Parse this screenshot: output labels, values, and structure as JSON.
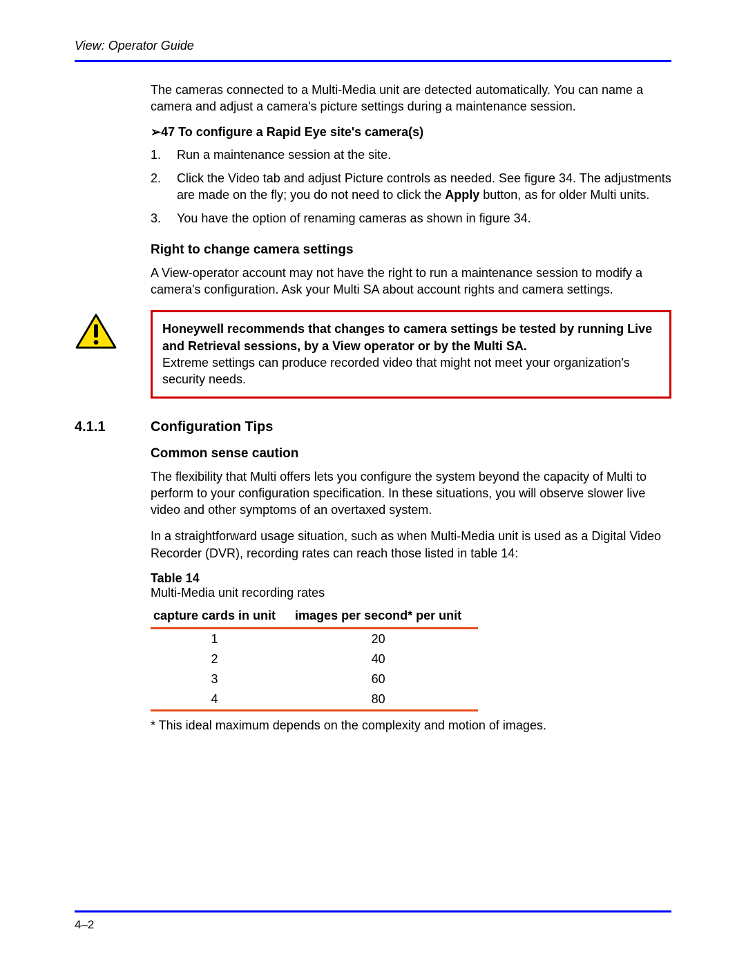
{
  "header": {
    "title": "View: Operator Guide"
  },
  "intro": "The cameras connected to a Multi-Media unit are detected automatically. You can name a camera and adjust a camera's picture settings during a maintenance session.",
  "proc": {
    "arrow": "➢",
    "title": "47 To configure a Rapid Eye site's camera(s)",
    "steps": [
      {
        "n": "1.",
        "t": "Run a maintenance session at the site."
      },
      {
        "n": "2.",
        "pre": "Click the Video tab and adjust Picture controls as needed. See figure 34. The adjustments are made on the fly; you do not need to click the ",
        "bold": "Apply",
        "post": " button, as for older Multi units."
      },
      {
        "n": "3.",
        "t": "You have the option of renaming cameras as shown in figure 34."
      }
    ]
  },
  "right_heading": "Right to change camera settings",
  "right_body": "A View-operator account may not have the right to run a maintenance session to modify a camera's configuration. Ask your Multi SA about account rights and camera settings.",
  "warning": {
    "bold": "Honeywell recommends that changes to camera settings be tested by running Live and Retrieval sessions, by a View operator or by the Multi SA.",
    "rest": "Extreme settings can produce recorded video that might not meet your organization's security needs.",
    "icon_colors": {
      "fill": "#ffe100",
      "stroke": "#000000"
    }
  },
  "section": {
    "num": "4.1.1",
    "title": "Configuration Tips"
  },
  "common_heading": "Common sense caution",
  "common_p1": "The flexibility that Multi offers lets you configure the system beyond the capacity of Multi to perform to your configuration specification. In these situations, you will observe slower live video and other symptoms of an overtaxed system.",
  "common_p2": "In a straightforward usage situation, such as when Multi-Media unit is used as a Digital Video Recorder (DVR), recording rates can reach those listed in table 14:",
  "table": {
    "label_bold": "Table 14",
    "label_rest": "Multi-Media unit recording rates",
    "header_border_color": "#e84c1a",
    "columns": [
      "capture cards in unit",
      "images per second* per unit"
    ],
    "rows": [
      [
        "1",
        "20"
      ],
      [
        "2",
        "40"
      ],
      [
        "3",
        "60"
      ],
      [
        "4",
        "80"
      ]
    ]
  },
  "footnote": "* This ideal maximum depends on the complexity and motion of images.",
  "footer": {
    "page": "4–2"
  },
  "colors": {
    "blue_rule": "#0000ff",
    "red_box": "#d00000"
  }
}
